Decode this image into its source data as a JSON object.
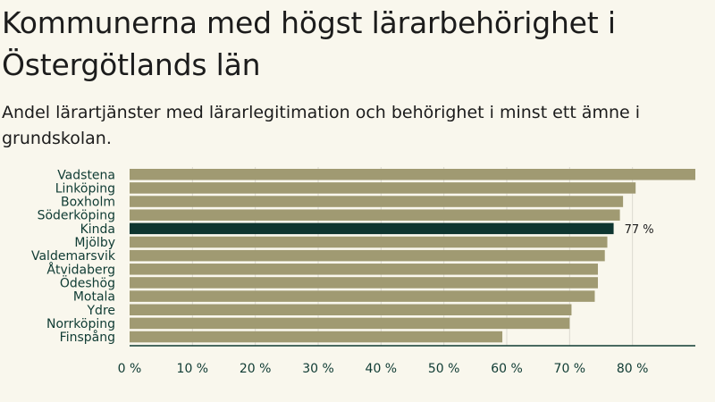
{
  "chart_data": {
    "type": "bar",
    "orientation": "horizontal",
    "title": "Kommunerna med högst lärarbehörighet i Östergötlands län",
    "subtitle": "Andel lärartjänster med lärarlegitimation och behörighet i minst ett ämne i grundskolan.",
    "categories": [
      "Vadstena",
      "Linköping",
      "Boxholm",
      "Söderköping",
      "Kinda",
      "Mjölby",
      "Valdemarsvik",
      "Åtvidaberg",
      "Ödeshög",
      "Motala",
      "Ydre",
      "Norrköping",
      "Finspång"
    ],
    "values": [
      90,
      80.5,
      78.5,
      78,
      77,
      76,
      75.6,
      74.5,
      74.5,
      74,
      70.3,
      70,
      59.3
    ],
    "highlight_category": "Kinda",
    "data_labels": [
      {
        "category": "Kinda",
        "text": "77 %"
      }
    ],
    "x_ticks": [
      {
        "value": 0,
        "label": "0 %"
      },
      {
        "value": 10,
        "label": "10 %"
      },
      {
        "value": 20,
        "label": "20 %"
      },
      {
        "value": 30,
        "label": "30 %"
      },
      {
        "value": 40,
        "label": "40 %"
      },
      {
        "value": 50,
        "label": "50 %"
      },
      {
        "value": 60,
        "label": "60 %"
      },
      {
        "value": 70,
        "label": "70 %"
      },
      {
        "value": 80,
        "label": "80 %"
      }
    ],
    "xlim": [
      0,
      90
    ],
    "grid": true,
    "legend": "none",
    "colors": {
      "bar": "#a09a72",
      "highlight": "#0e3530",
      "grid": "#dcdad0",
      "axis": "#0f3b33",
      "label": "#0f3b33"
    }
  }
}
